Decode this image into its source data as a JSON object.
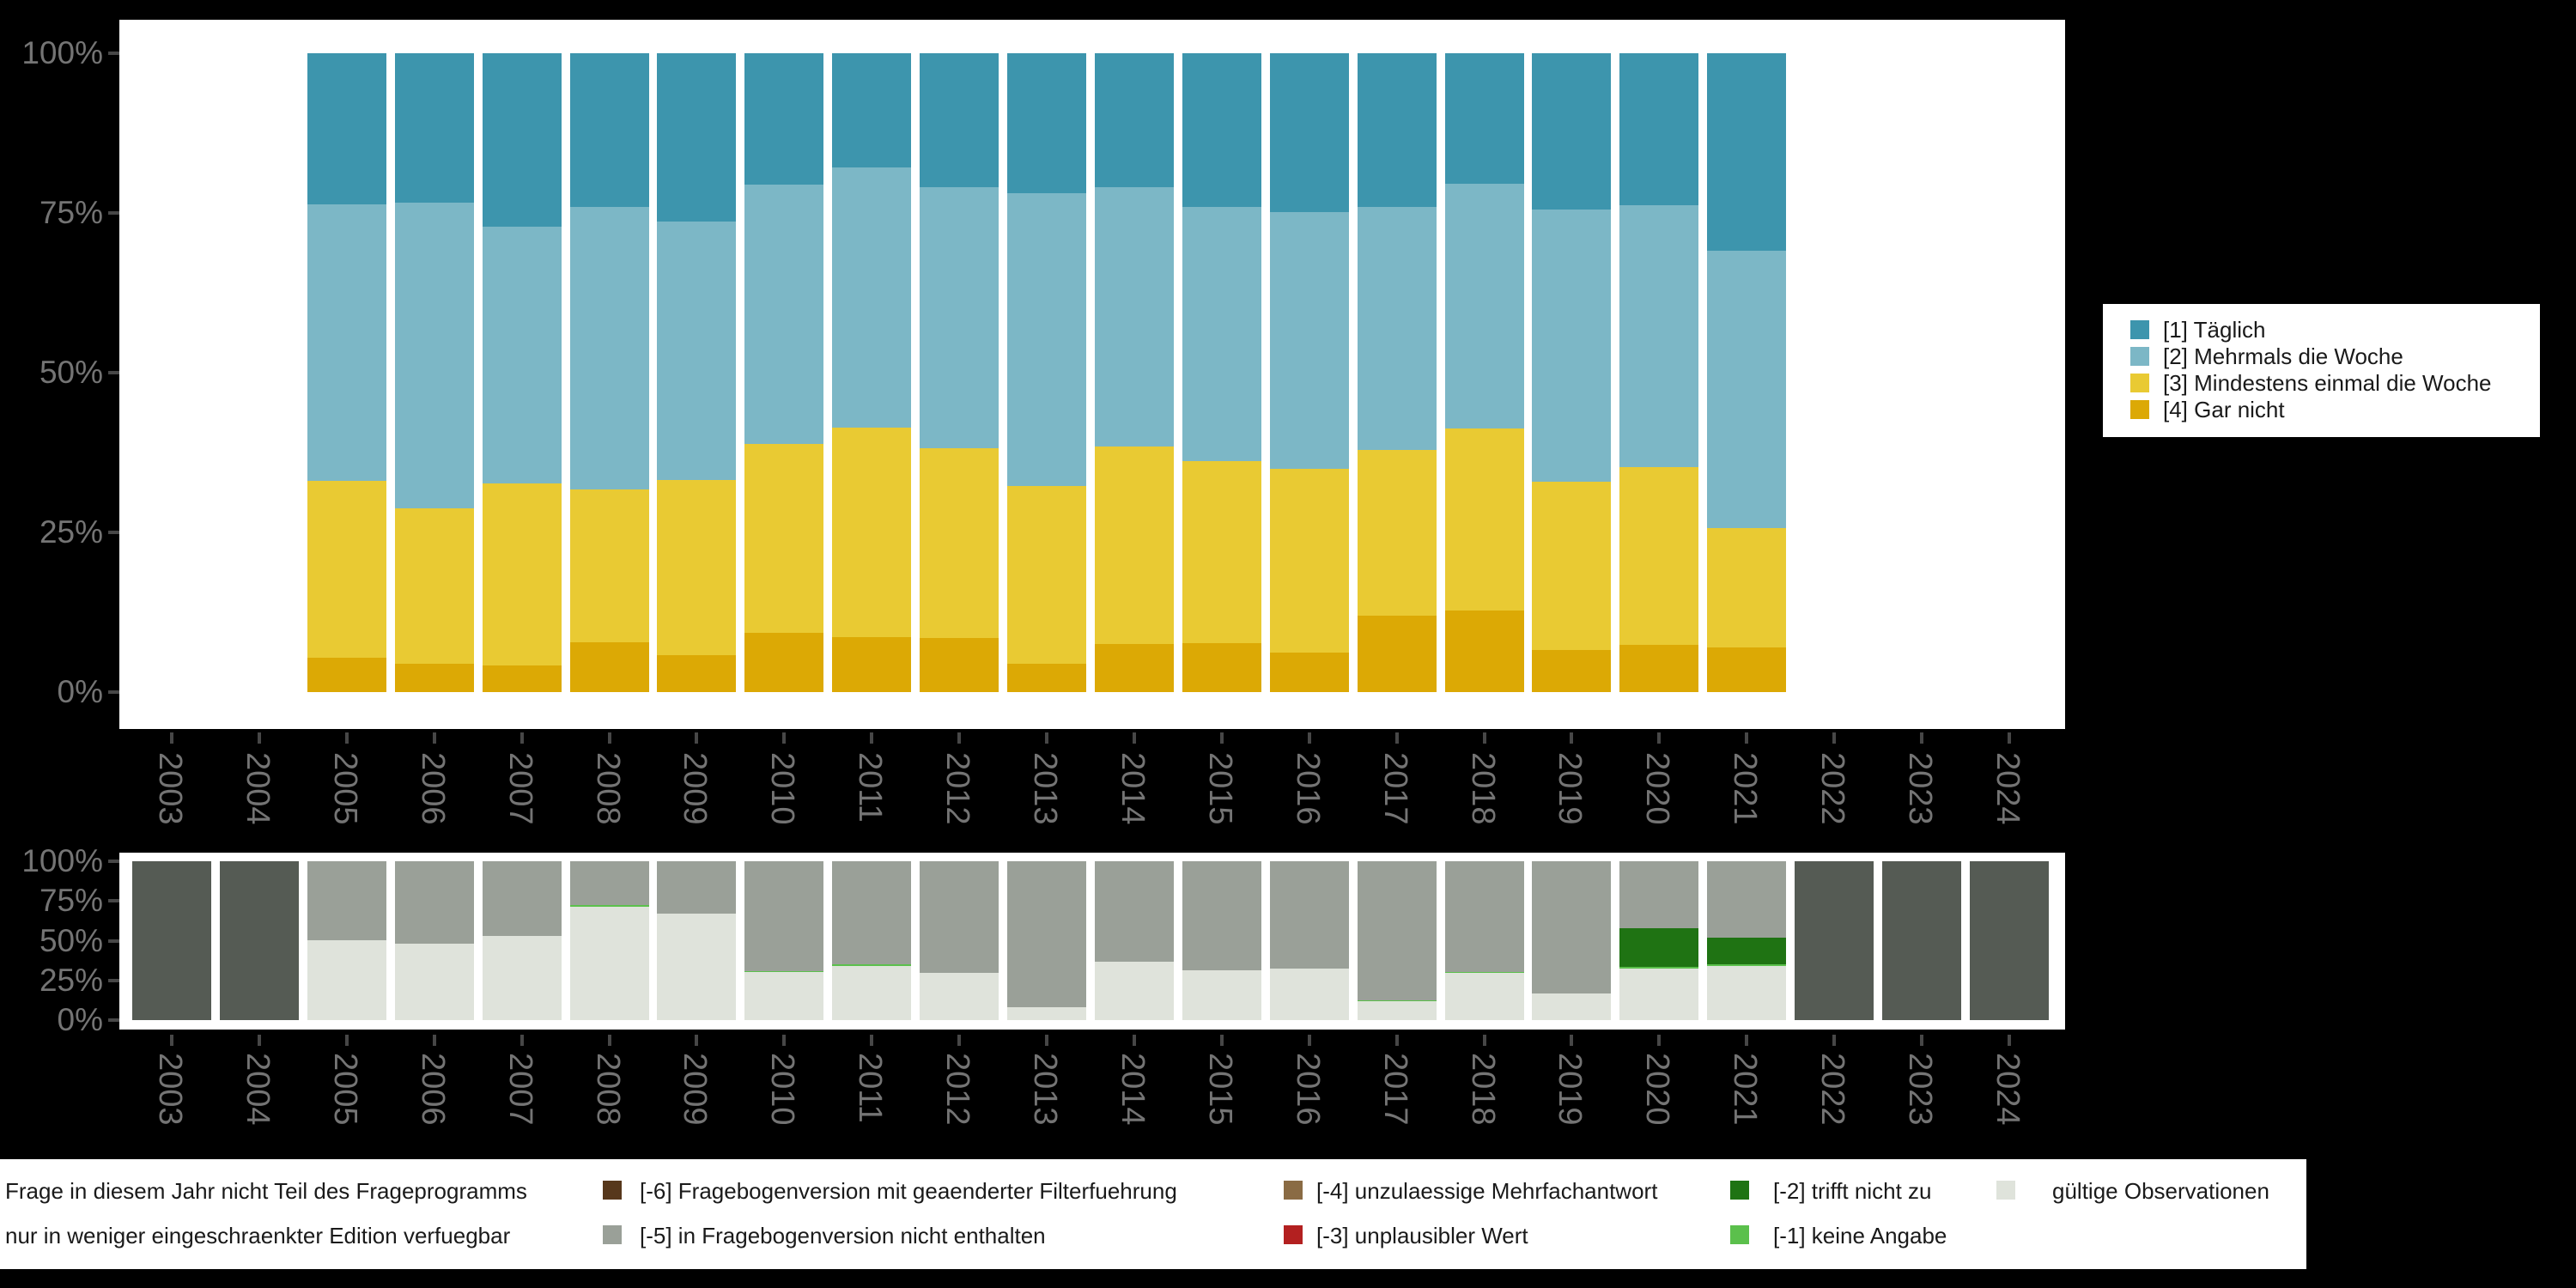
{
  "background_color": "#000000",
  "panel_color": "#ffffff",
  "axis": {
    "tick_color": "#474747",
    "label_color": "#747474",
    "years": [
      "2003",
      "2004",
      "2005",
      "2006",
      "2007",
      "2008",
      "2009",
      "2010",
      "2011",
      "2012",
      "2013",
      "2014",
      "2015",
      "2016",
      "2017",
      "2018",
      "2019",
      "2020",
      "2021",
      "2022",
      "2023",
      "2024"
    ],
    "percent_ticks": [
      "0%",
      "25%",
      "50%",
      "75%",
      "100%"
    ]
  },
  "chart_data": [
    {
      "type": "bar",
      "stacked": true,
      "title": "",
      "xlabel": "",
      "ylabel": "",
      "ylim": [
        0,
        100
      ],
      "yticks_labels": [
        "0%",
        "25%",
        "50%",
        "75%",
        "100%"
      ],
      "grid": false,
      "legend_position": "right",
      "categories": [
        "2003",
        "2004",
        "2005",
        "2006",
        "2007",
        "2008",
        "2009",
        "2010",
        "2011",
        "2012",
        "2013",
        "2014",
        "2015",
        "2016",
        "2017",
        "2018",
        "2019",
        "2020",
        "2021",
        "2022",
        "2023",
        "2024"
      ],
      "series": [
        {
          "name": "[1] Täglich",
          "color": "#3D95AD",
          "values": [
            null,
            null,
            23.7,
            23.4,
            27.1,
            24.0,
            26.4,
            20.6,
            17.9,
            21.0,
            21.9,
            21.0,
            24.1,
            24.9,
            24.0,
            20.4,
            24.5,
            23.8,
            30.9,
            null,
            null,
            null
          ]
        },
        {
          "name": "[2] Mehrmals die Woche",
          "color": "#7CB7C6",
          "values": [
            null,
            null,
            43.2,
            47.8,
            40.2,
            44.3,
            40.4,
            40.6,
            40.7,
            40.8,
            45.8,
            40.5,
            39.8,
            40.2,
            38.1,
            38.4,
            42.6,
            41.0,
            43.4,
            null,
            null,
            null
          ]
        },
        {
          "name": "[3] Mindestens einmal die Woche",
          "color": "#E9CA33",
          "values": [
            null,
            null,
            27.7,
            24.3,
            28.6,
            23.9,
            27.4,
            29.5,
            32.8,
            29.7,
            27.8,
            31.0,
            28.4,
            28.7,
            25.9,
            28.4,
            26.3,
            27.8,
            18.7,
            null,
            null,
            null
          ]
        },
        {
          "name": "[4] Gar nicht",
          "color": "#DCA905",
          "values": [
            null,
            null,
            5.4,
            4.5,
            4.1,
            7.8,
            5.8,
            9.3,
            8.6,
            8.5,
            4.5,
            7.5,
            7.7,
            6.2,
            12.0,
            12.8,
            6.6,
            7.4,
            7.0,
            null,
            null,
            null
          ]
        }
      ],
      "note": "series listed top-to-bottom as stacked; null = no bar that year"
    },
    {
      "type": "bar",
      "stacked": true,
      "title": "",
      "xlabel": "",
      "ylabel": "",
      "ylim": [
        0,
        100
      ],
      "yticks_labels": [
        "0%",
        "25%",
        "50%",
        "75%",
        "100%"
      ],
      "grid": false,
      "legend_position": "bottom",
      "categories": [
        "2003",
        "2004",
        "2005",
        "2006",
        "2007",
        "2008",
        "2009",
        "2010",
        "2011",
        "2012",
        "2013",
        "2014",
        "2015",
        "2016",
        "2017",
        "2018",
        "2019",
        "2020",
        "2021",
        "2022",
        "2023",
        "2024"
      ],
      "series": [
        {
          "name": "Frage in diesem Jahr nicht Teil des Frageprogramms",
          "color": "#555B54",
          "values": [
            100,
            100,
            0,
            0,
            0,
            0,
            0,
            0,
            0,
            0,
            0,
            0,
            0,
            0,
            0,
            0,
            0,
            0,
            0,
            100,
            100,
            100
          ]
        },
        {
          "name": "[-5] in Fragebogenversion nicht enthalten",
          "color": "#9AA098",
          "values": [
            0,
            0,
            49.7,
            52.1,
            47.0,
            27.7,
            33.1,
            69.1,
            65.1,
            70.5,
            91.8,
            63.4,
            68.8,
            67.4,
            87.5,
            69.8,
            83.4,
            42.2,
            48.2,
            0,
            0,
            0
          ]
        },
        {
          "name": "[-2] trifft nicht zu",
          "color": "#1F7313",
          "values": [
            0,
            0,
            0,
            0,
            0,
            0,
            0,
            0,
            0,
            0,
            0,
            0,
            0,
            0,
            0,
            0,
            0,
            24.1,
            16.8,
            0,
            0,
            0
          ]
        },
        {
          "name": "[-1] keine Angabe",
          "color": "#5BC04C",
          "values": [
            0,
            0,
            0,
            0,
            0,
            0.9,
            0,
            0.9,
            0.9,
            0,
            0,
            0,
            0,
            0,
            0.6,
            0.6,
            0,
            1.1,
            0.9,
            0,
            0,
            0
          ]
        },
        {
          "name": "gültige Observationen",
          "color": "#DFE3DB",
          "values": [
            0,
            0,
            50.3,
            47.9,
            53.0,
            71.4,
            66.9,
            30.0,
            34.0,
            29.5,
            8.2,
            36.6,
            31.2,
            32.6,
            11.9,
            29.6,
            16.6,
            32.6,
            34.1,
            0,
            0,
            0
          ]
        }
      ],
      "note": "series listed top-to-bottom as stacked"
    }
  ],
  "top_legend": {
    "items": [
      {
        "label": "[1] Täglich",
        "color": "#3D95AD"
      },
      {
        "label": "[2] Mehrmals die Woche",
        "color": "#7CB7C6"
      },
      {
        "label": "[3] Mindestens einmal die Woche",
        "color": "#E9CA33"
      },
      {
        "label": "[4] Gar nicht",
        "color": "#DCA905"
      }
    ]
  },
  "bottom_legend": {
    "rows": [
      [
        {
          "label": "Frage in diesem Jahr nicht Teil des Frageprogramms",
          "color": null,
          "swatch_visible": false
        },
        {
          "label": "[-6] Fragebogenversion mit geaenderter Filterfuehrung",
          "color": "#57381C",
          "swatch_visible": true
        },
        {
          "label": "[-4] unzulaessige Mehrfachantwort",
          "color": "#8A6B44",
          "swatch_visible": true
        },
        {
          "label": "[-2] trifft nicht zu",
          "color": "#1F7313",
          "swatch_visible": true
        },
        {
          "label": "gültige Observationen",
          "color": "#DFE3DB",
          "swatch_visible": true
        }
      ],
      [
        {
          "label": "nur in weniger eingeschraenkter Edition verfuegbar",
          "color": null,
          "swatch_visible": false
        },
        {
          "label": "[-5] in Fragebogenversion nicht enthalten",
          "color": "#9AA098",
          "swatch_visible": true
        },
        {
          "label": "[-3] unplausibler Wert",
          "color": "#B32020",
          "swatch_visible": true
        },
        {
          "label": "[-1] keine Angabe",
          "color": "#5BC04C",
          "swatch_visible": true
        }
      ]
    ]
  }
}
